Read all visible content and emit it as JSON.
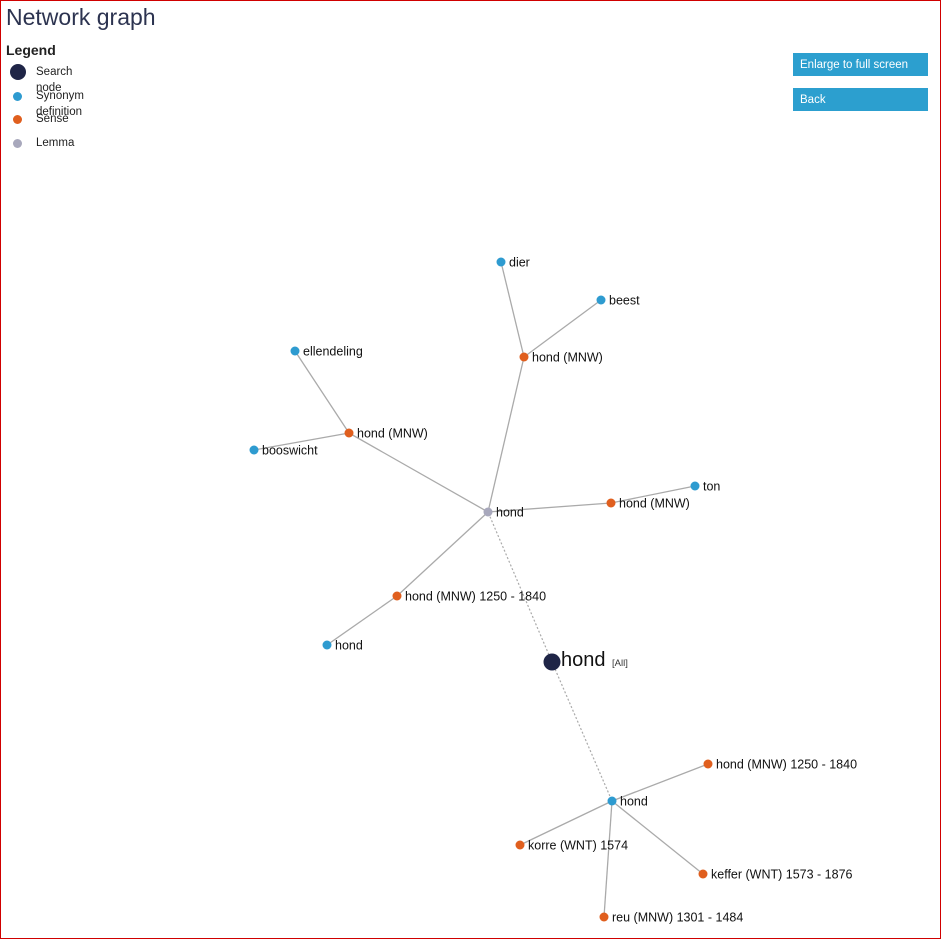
{
  "page": {
    "title": "Network graph"
  },
  "legend": {
    "title": "Legend",
    "items": [
      {
        "label": "Search node",
        "type": "search"
      },
      {
        "label": "Synonym definition",
        "type": "synonym"
      },
      {
        "label": "Sense",
        "type": "sense"
      },
      {
        "label": "Lemma",
        "type": "lemma"
      }
    ]
  },
  "buttons": {
    "fullscreen_label": "Enlarge to full screen",
    "back_label": "Back"
  },
  "colors": {
    "search": "#1f2547",
    "synonym": "#2e9bd0",
    "sense": "#e05f1e",
    "lemma": "#a8a8bc",
    "edge": "#aaaaaa",
    "button": "#2c9fcf",
    "title": "#2c3350",
    "frame": "#d00000"
  },
  "graph": {
    "search_node": {
      "id": "search",
      "label": "hond",
      "sublabel": "[All]"
    },
    "nodes": [
      {
        "id": "lemma1",
        "label": "hond",
        "type": "lemma"
      },
      {
        "id": "s_top",
        "label": "hond (MNW)",
        "type": "sense"
      },
      {
        "id": "dier",
        "label": "dier",
        "type": "synonym"
      },
      {
        "id": "beest",
        "label": "beest",
        "type": "synonym"
      },
      {
        "id": "s_left",
        "label": "hond (MNW)",
        "type": "sense"
      },
      {
        "id": "ellendeling",
        "label": "ellendeling",
        "type": "synonym"
      },
      {
        "id": "booswicht",
        "label": "booswicht",
        "type": "synonym"
      },
      {
        "id": "s_right",
        "label": "hond (MNW)",
        "type": "sense"
      },
      {
        "id": "ton",
        "label": "ton",
        "type": "synonym"
      },
      {
        "id": "s_mid",
        "label": "hond (MNW) 1250 - 1840",
        "type": "sense"
      },
      {
        "id": "syn_hond1",
        "label": "hond",
        "type": "synonym"
      },
      {
        "id": "syn_hond2",
        "label": "hond",
        "type": "synonym"
      },
      {
        "id": "s_b1",
        "label": "hond (MNW) 1250 - 1840",
        "type": "sense"
      },
      {
        "id": "korre",
        "label": "korre (WNT) 1574",
        "type": "sense"
      },
      {
        "id": "keffer",
        "label": "keffer (WNT) 1573 - 1876",
        "type": "sense"
      },
      {
        "id": "reu",
        "label": "reu (MNW) 1301 - 1484",
        "type": "sense"
      }
    ],
    "edges": [
      {
        "from": "search",
        "to": "lemma1",
        "style": "dotted"
      },
      {
        "from": "search",
        "to": "syn_hond2",
        "style": "dotted"
      },
      {
        "from": "lemma1",
        "to": "s_top",
        "style": "solid"
      },
      {
        "from": "s_top",
        "to": "dier",
        "style": "solid"
      },
      {
        "from": "s_top",
        "to": "beest",
        "style": "solid"
      },
      {
        "from": "lemma1",
        "to": "s_left",
        "style": "solid"
      },
      {
        "from": "s_left",
        "to": "ellendeling",
        "style": "solid"
      },
      {
        "from": "s_left",
        "to": "booswicht",
        "style": "solid"
      },
      {
        "from": "lemma1",
        "to": "s_right",
        "style": "solid"
      },
      {
        "from": "s_right",
        "to": "ton",
        "style": "solid"
      },
      {
        "from": "lemma1",
        "to": "s_mid",
        "style": "solid"
      },
      {
        "from": "s_mid",
        "to": "syn_hond1",
        "style": "solid"
      },
      {
        "from": "syn_hond2",
        "to": "s_b1",
        "style": "solid"
      },
      {
        "from": "syn_hond2",
        "to": "korre",
        "style": "solid"
      },
      {
        "from": "syn_hond2",
        "to": "keffer",
        "style": "solid"
      },
      {
        "from": "syn_hond2",
        "to": "reu",
        "style": "solid"
      }
    ]
  }
}
